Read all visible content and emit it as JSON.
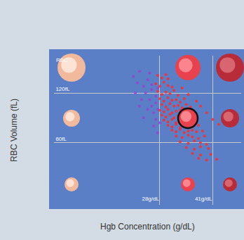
{
  "chart_data": {
    "type": "scatter",
    "title": "RBC",
    "x_label": "Hgb Concentration (g/dL)",
    "y_label": "RBC Volume (fL)",
    "xlim": [
      2,
      48
    ],
    "ylim": [
      -15,
      165
    ],
    "xticks": [
      {
        "value": 28,
        "label": "28g/dL"
      },
      {
        "value": 41,
        "label": "41g/dL"
      }
    ],
    "yticks": [
      {
        "value": 60,
        "label": "60fL"
      },
      {
        "value": 120,
        "label": "120fL"
      }
    ],
    "grid": true,
    "series": [
      {
        "color": "#ff2a2a",
        "marker": "circle",
        "x": [
          27.5,
          28.5,
          29.5,
          30,
          27,
          28,
          29,
          30,
          31,
          27.5,
          28.5,
          29.5,
          30.5,
          31.5,
          32.5,
          28,
          29,
          30,
          31,
          32,
          33,
          34,
          28.5,
          29.5,
          30.5,
          31.5,
          32.5,
          33.5,
          34.5,
          35.5,
          28,
          29,
          30,
          31,
          32,
          33,
          34,
          35,
          36,
          28.5,
          29.5,
          30.5,
          31.5,
          32.5,
          33.5,
          34.5,
          35.5,
          36.5,
          29,
          30,
          31,
          32,
          33,
          34,
          35,
          36,
          37,
          30,
          31,
          32,
          33,
          34,
          35,
          36,
          37.5,
          31,
          32,
          33,
          34,
          35,
          36,
          37,
          38.5,
          32,
          33.5,
          35,
          36,
          37.5,
          39,
          33,
          35,
          36.5,
          38,
          39.5,
          34.5,
          36.5,
          38,
          40,
          36,
          38,
          40.5,
          37.5,
          39.5,
          42,
          38,
          39.5,
          41,
          42.5,
          37,
          35,
          33.5
        ],
        "y": [
          141,
          138,
          142,
          137,
          131,
          128,
          133,
          129,
          127,
          122,
          118,
          121,
          119,
          123,
          117,
          113,
          110,
          114,
          111,
          112,
          109,
          113,
          106,
          103,
          107,
          104,
          105,
          102,
          106,
          103,
          99,
          97,
          100,
          96,
          98,
          99,
          97,
          100,
          96,
          93,
          91,
          94,
          90,
          92,
          93,
          91,
          94,
          90,
          87,
          85,
          88,
          84,
          86,
          87,
          85,
          88,
          84,
          81,
          79,
          82,
          78,
          80,
          81,
          79,
          81,
          75,
          73,
          76,
          72,
          74,
          75,
          73,
          74,
          68,
          66,
          69,
          67,
          65,
          68,
          61,
          59,
          62,
          60,
          58,
          54,
          52,
          55,
          53,
          47,
          45,
          46,
          41,
          39,
          40,
          104,
          96,
          88,
          82,
          110,
          118,
          126
        ]
      },
      {
        "color": "#9b3fd0",
        "marker": "circle",
        "x": [
          21.5,
          22.5,
          23,
          24,
          24.5,
          25,
          25.5,
          26,
          26,
          26.5,
          27,
          27,
          27.5,
          23.5,
          25,
          26.5,
          27.5,
          24,
          22,
          25.5,
          27,
          26,
          23,
          28,
          27.5
        ],
        "y": [
          140,
          132,
          146,
          128,
          120,
          136,
          112,
          124,
          104,
          96,
          116,
          88,
          100,
          112,
          100,
          80,
          72,
          90,
          120,
          144,
          108,
          130,
          104,
          84,
          126
        ]
      }
    ]
  }
}
